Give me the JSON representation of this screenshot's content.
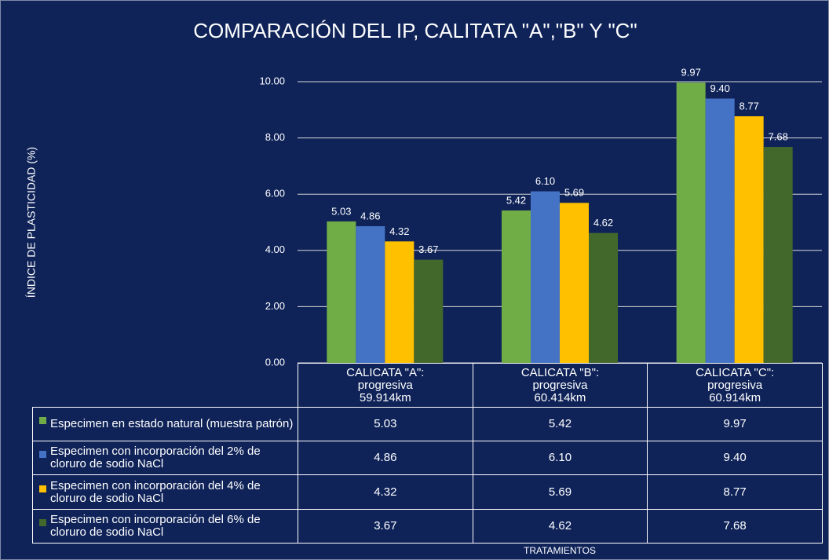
{
  "chart_data": {
    "type": "bar",
    "title": "COMPARACIÓN DEL IP, CALITATA \"A\",\"B\" Y \"C\"",
    "y_label": "ÍNDICE DE PLASTICIDAD (%)",
    "x_label": "TRATAMIENTOS",
    "categories": [
      "CALICATA \"A\":\nprogresiva\n59.914km",
      "CALICATA \"B\":\nprogresiva\n60.414km",
      "CALICATA \"C\":\nprogresiva\n60.914km"
    ],
    "series": [
      {
        "name": "Especimen en estado natural (muestra patrón)",
        "color": "#70ad47",
        "values": [
          5.03,
          5.42,
          9.97
        ],
        "value_labels": [
          "5.03",
          "5.42",
          "9.97"
        ]
      },
      {
        "name": "Especimen con incorporación del 2% de cloruro de sodio NaCl",
        "color": "#4472c4",
        "values": [
          4.86,
          6.1,
          9.4
        ],
        "value_labels": [
          "4.86",
          "6.10",
          "9.40"
        ]
      },
      {
        "name": "Especimen con incorporación del 4% de cloruro de sodio NaCl",
        "color": "#ffc000",
        "values": [
          4.32,
          5.69,
          8.77
        ],
        "value_labels": [
          "4.32",
          "5.69",
          "8.77"
        ]
      },
      {
        "name": "Especimen con incorporación del 6% de cloruro de sodio NaCl",
        "color": "#43682b",
        "values": [
          3.67,
          4.62,
          7.68
        ],
        "value_labels": [
          "3.67",
          "4.62",
          "7.68"
        ]
      }
    ],
    "ylim": [
      0,
      10
    ],
    "yticks": [
      {
        "value": 0,
        "label": "0.00"
      },
      {
        "value": 2,
        "label": "2.00"
      },
      {
        "value": 4,
        "label": "4.00"
      },
      {
        "value": 6,
        "label": "6.00"
      },
      {
        "value": 8,
        "label": "8.00"
      },
      {
        "value": 10,
        "label": "10.00"
      }
    ],
    "grid": true
  }
}
